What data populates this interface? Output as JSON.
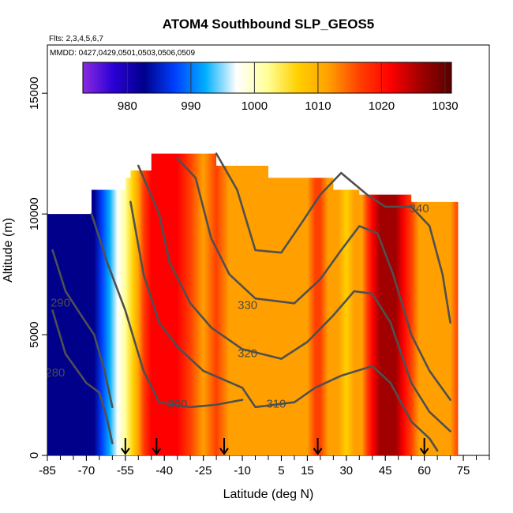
{
  "chart_data": {
    "type": "heatmap",
    "title": "ATOM4 Southbound SLP_GEOS5",
    "flights_note": "Flts: 2,3,4,5,6,7",
    "dates_note": "MMDD: 0427,0429,0501,0503,0506,0509",
    "xlabel": "Latitude (deg N)",
    "ylabel": "Altitude (m)",
    "xlim": [
      -85,
      85
    ],
    "ylim": [
      0,
      17000
    ],
    "x_ticks": [
      -85,
      -70,
      -55,
      -40,
      -25,
      -10,
      5,
      15,
      30,
      45,
      60,
      75
    ],
    "x_tick_labels": [
      "-85",
      "-70",
      "-55",
      "-40",
      "-25",
      "-10",
      "5",
      "15",
      "30",
      "45",
      "60",
      "75"
    ],
    "y_ticks": [
      0,
      5000,
      10000,
      15000
    ],
    "y_tick_labels": [
      "0",
      "5000",
      "10000",
      "15000"
    ],
    "colorbar": {
      "min": 973,
      "max": 1031,
      "ticks": [
        980,
        990,
        1000,
        1010,
        1020,
        1030
      ],
      "tick_labels": [
        "980",
        "990",
        "1000",
        "1010",
        "1020",
        "1030"
      ],
      "colors": [
        "#8a2be2",
        "#2a00d4",
        "#00008b",
        "#0040ff",
        "#00b0ff",
        "#ffffff",
        "#ffff99",
        "#ffd000",
        "#ffa000",
        "#ff4000",
        "#ff0000",
        "#a00000",
        "#5a0000"
      ]
    },
    "slp_profile": {
      "lat": [
        -85,
        -80,
        -75,
        -70,
        -67,
        -64,
        -61,
        -58,
        -55,
        -52,
        -50,
        -48,
        -45,
        -40,
        -35,
        -30,
        -25,
        -20,
        -15,
        -10,
        -5,
        0,
        5,
        10,
        15,
        18,
        20,
        23,
        27,
        30,
        33,
        36,
        38,
        40,
        43,
        46,
        49,
        52,
        55,
        58,
        62,
        66,
        70,
        73
      ],
      "slp": [
        985,
        984,
        983,
        981,
        983,
        988,
        993,
        997,
        1001,
        1005,
        1010,
        1016,
        1020,
        1022,
        1019,
        1015,
        1014,
        1016,
        1013,
        1012,
        1011,
        1010,
        1010,
        1012,
        1014,
        1017,
        1015,
        1012,
        1010,
        1008,
        1011,
        1014,
        1017,
        1022,
        1026,
        1027,
        1026,
        1022,
        1016,
        1012,
        1011,
        1013,
        1014,
        1015
      ]
    },
    "curtain_top": {
      "lat": [
        -85,
        -70,
        -68,
        -60,
        -55,
        -53,
        -45,
        -40,
        -35,
        -30,
        -20,
        -10,
        0,
        5,
        10,
        20,
        25,
        30,
        35,
        40,
        50,
        55,
        60,
        65,
        70,
        73
      ],
      "alt": [
        10000,
        10000,
        11000,
        11000,
        11500,
        11800,
        12500,
        12500,
        12500,
        12500,
        12000,
        12000,
        11500,
        11500,
        11500,
        11500,
        11000,
        11000,
        10800,
        10800,
        10800,
        10500,
        10500,
        10500,
        10500,
        10000
      ]
    },
    "theta_contours": [
      {
        "label": "280",
        "label_lat": -82,
        "label_alt": 3400,
        "points": [
          [
            -83,
            6000
          ],
          [
            -78,
            4200
          ],
          [
            -70,
            3000
          ],
          [
            -65,
            2600
          ],
          [
            -62,
            1500
          ],
          [
            -60,
            500
          ]
        ]
      },
      {
        "label": "290",
        "label_lat": -80,
        "label_alt": 6300,
        "points": [
          [
            -83,
            8500
          ],
          [
            -78,
            6800
          ],
          [
            -72,
            5800
          ],
          [
            -67,
            5000
          ],
          [
            -63,
            3500
          ],
          [
            -60,
            2000
          ]
        ]
      },
      {
        "label": "300",
        "label_lat": -35,
        "label_alt": 2100,
        "points": [
          [
            -68,
            10000
          ],
          [
            -62,
            8000
          ],
          [
            -55,
            6000
          ],
          [
            -48,
            3500
          ],
          [
            -42,
            2200
          ],
          [
            -30,
            2000
          ],
          [
            -20,
            2100
          ],
          [
            -10,
            2300
          ]
        ]
      },
      {
        "label": "310",
        "label_lat": 3,
        "label_alt": 2100,
        "points": [
          [
            -53,
            10500
          ],
          [
            -48,
            7500
          ],
          [
            -42,
            5500
          ],
          [
            -35,
            4500
          ],
          [
            -25,
            3500
          ],
          [
            -10,
            2800
          ],
          [
            -5,
            2000
          ],
          [
            10,
            2200
          ],
          [
            18,
            2800
          ],
          [
            28,
            3300
          ],
          [
            40,
            3700
          ],
          [
            47,
            3000
          ],
          [
            55,
            1400
          ],
          [
            62,
            700
          ],
          [
            65,
            200
          ]
        ]
      },
      {
        "label": "320",
        "label_lat": -8,
        "label_alt": 4200,
        "points": [
          [
            -50,
            12000
          ],
          [
            -42,
            10000
          ],
          [
            -38,
            8000
          ],
          [
            -30,
            6300
          ],
          [
            -22,
            5300
          ],
          [
            -10,
            4400
          ],
          [
            5,
            4000
          ],
          [
            15,
            4700
          ],
          [
            25,
            5800
          ],
          [
            33,
            6800
          ],
          [
            40,
            6700
          ],
          [
            47,
            5500
          ],
          [
            55,
            3000
          ],
          [
            62,
            1800
          ],
          [
            70,
            1000
          ]
        ]
      },
      {
        "label": "330",
        "label_lat": -8,
        "label_alt": 6200,
        "points": [
          [
            -35,
            12300
          ],
          [
            -28,
            11500
          ],
          [
            -22,
            9000
          ],
          [
            -15,
            7500
          ],
          [
            -5,
            6500
          ],
          [
            10,
            6300
          ],
          [
            20,
            7300
          ],
          [
            28,
            8500
          ],
          [
            35,
            9500
          ],
          [
            42,
            9200
          ],
          [
            48,
            7500
          ],
          [
            55,
            5000
          ],
          [
            62,
            3500
          ],
          [
            70,
            2300
          ]
        ]
      },
      {
        "label": "340",
        "label_lat": 58,
        "label_alt": 10200,
        "points": [
          [
            -20,
            12500
          ],
          [
            -12,
            11000
          ],
          [
            -5,
            8500
          ],
          [
            5,
            8400
          ],
          [
            12,
            9500
          ],
          [
            20,
            10800
          ],
          [
            28,
            11700
          ],
          [
            38,
            10800
          ],
          [
            45,
            10300
          ],
          [
            55,
            10300
          ],
          [
            62,
            9500
          ],
          [
            67,
            7500
          ],
          [
            70,
            5500
          ]
        ]
      }
    ],
    "flight_markers_lat": [
      -55,
      -43,
      -17,
      19,
      60
    ]
  }
}
